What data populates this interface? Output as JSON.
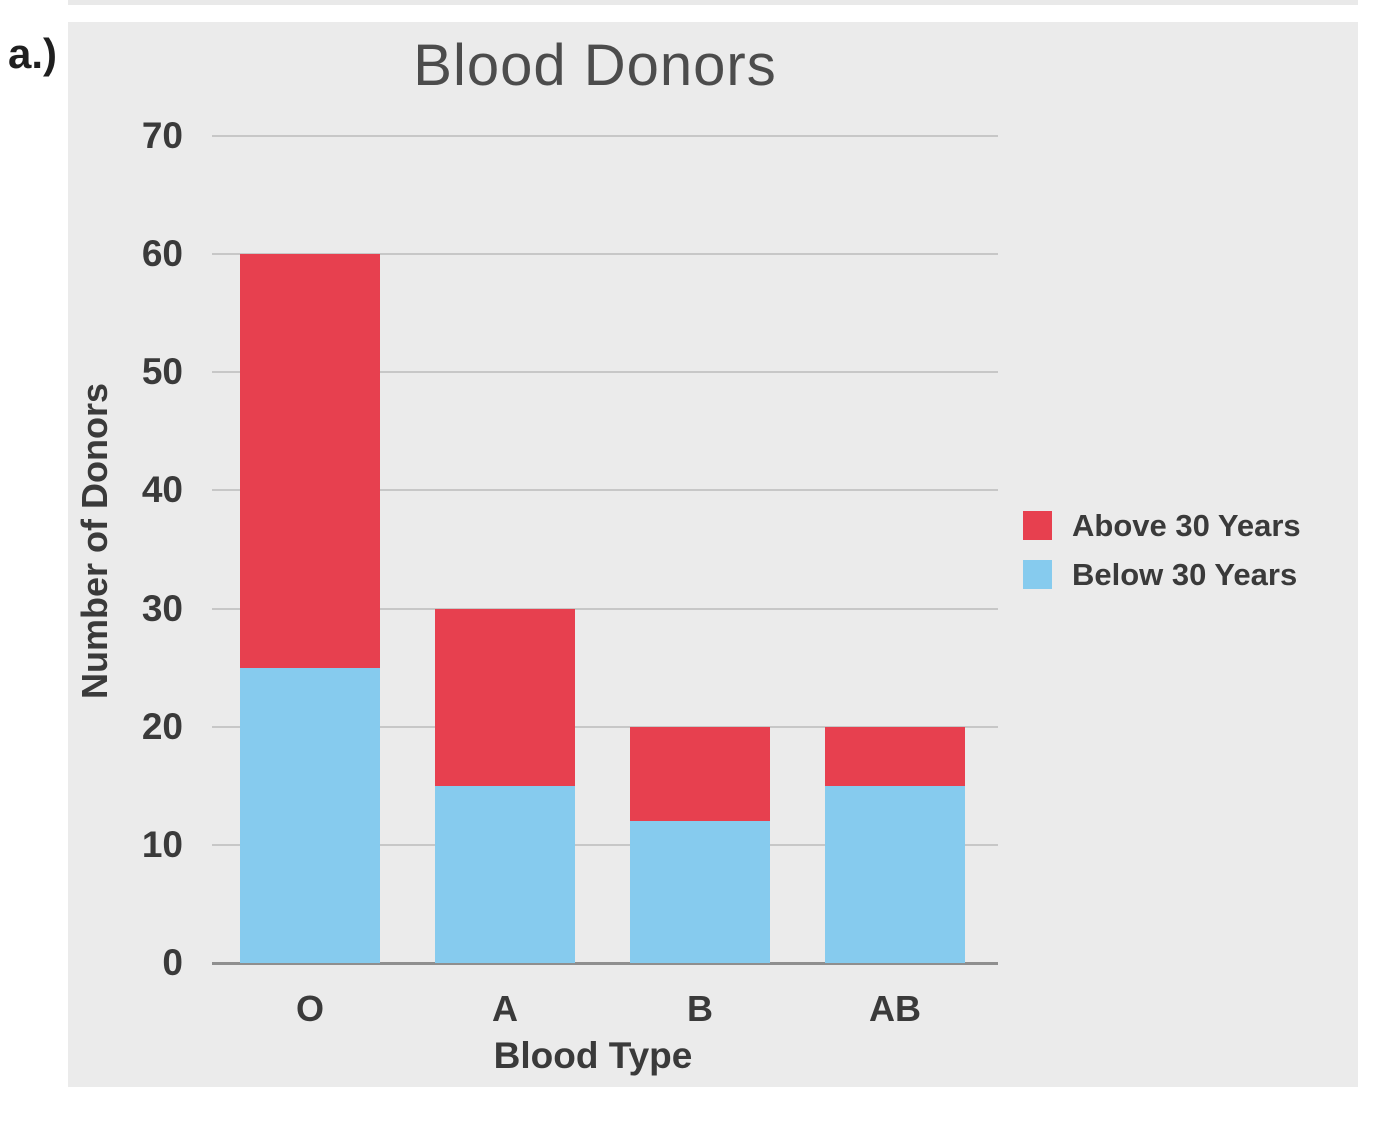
{
  "page": {
    "part_label": "a.)"
  },
  "colors": {
    "panel_background": "#ebebeb",
    "gridline": "#c7c7c7",
    "axis_line": "#8f8f8f",
    "text": "#3a3a3a",
    "title_text": "#4c4c4c",
    "above_30_red": "#e7404f",
    "below_30_blue": "#86cbee"
  },
  "chart_data": {
    "type": "bar",
    "stacked": true,
    "title": "Blood Donors",
    "xlabel": "Blood Type",
    "ylabel": "Number of Donors",
    "categories": [
      "O",
      "A",
      "B",
      "AB"
    ],
    "series": [
      {
        "name": "Above 30 Years",
        "color": "#e7404f",
        "values": [
          35,
          15,
          8,
          5
        ]
      },
      {
        "name": "Below 30 Years",
        "color": "#86cbee",
        "values": [
          25,
          15,
          12,
          15
        ]
      }
    ],
    "stack_totals": [
      60,
      30,
      20,
      20
    ],
    "ylim": [
      0,
      70
    ],
    "y_ticks": [
      0,
      10,
      20,
      30,
      40,
      50,
      60,
      70
    ],
    "grid": "horizontal",
    "legend_position": "right"
  }
}
